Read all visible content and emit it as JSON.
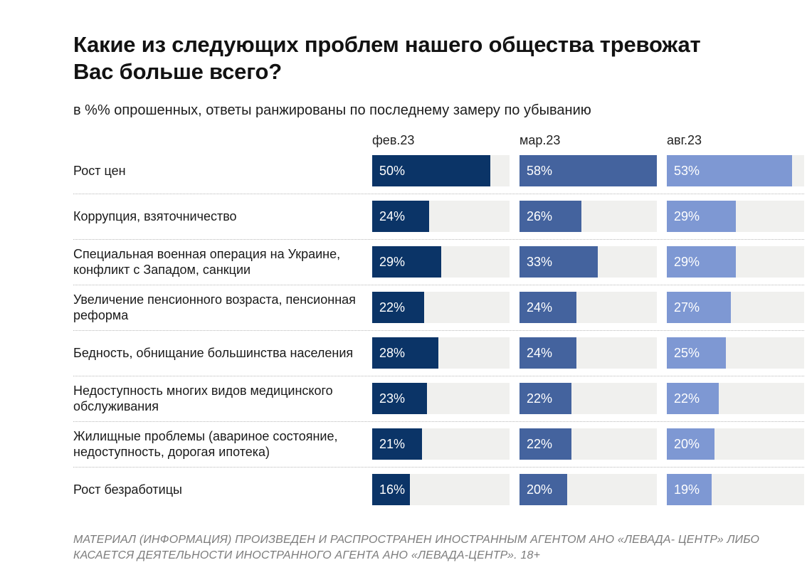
{
  "page": {
    "title_lines": [
      "Какие из следующих проблем нашего общества тревожат",
      "Вас больше всего?"
    ],
    "subtitle": "в %% опрошенных, ответы ранжированы по последнему замеру по убыванию",
    "footer_lines": [
      "МАТЕРИАЛ (ИНФОРМАЦИЯ) ПРОИЗВЕДЕН И РАСПРОСТРАНЕН ИНОСТРАННЫМ АГЕНТОМ АНО «ЛЕВАДА-",
      "ЦЕНТР» ЛИБО КАСАЕТСЯ ДЕЯТЕЛЬНОСТИ ИНОСТРАННОГО АГЕНТА АНО «ЛЕВАДА-ЦЕНТР». 18+"
    ]
  },
  "chart_data": {
    "type": "bar",
    "orientation": "horizontal",
    "title": "Какие из следующих проблем нашего общества тревожат Вас больше всего?",
    "subtitle": "в %% опрошенных, ответы ранжированы по последнему замеру по убыванию",
    "unit": "%",
    "value_suffix": "%",
    "scale_max": 58,
    "legend_position": "top",
    "grid": "dotted-row-separators",
    "track_color": "#f0f0ee",
    "value_label_color": "#ffffff",
    "categories": [
      "Рост цен",
      "Коррупция, взяточничество",
      "Специальная военная операция на Украине, конфликт с Западом, санкции",
      "Увеличение пенсионного возраста, пенсионная реформа",
      "Бедность, обнищание большинства населения",
      "Недоступность многих видов медицинского обслуживания",
      "Жилищные проблемы (авариное состояние, недоступность, дорогая ипотека)",
      "Рост безработицы"
    ],
    "series": [
      {
        "name": "фев.23",
        "color": "#0b3467",
        "values": [
          50,
          24,
          29,
          22,
          28,
          23,
          21,
          16
        ]
      },
      {
        "name": "мар.23",
        "color": "#44639e",
        "values": [
          58,
          26,
          33,
          24,
          24,
          22,
          22,
          20
        ]
      },
      {
        "name": "авг.23",
        "color": "#7e98d3",
        "values": [
          53,
          29,
          29,
          27,
          25,
          22,
          20,
          19
        ]
      }
    ]
  }
}
